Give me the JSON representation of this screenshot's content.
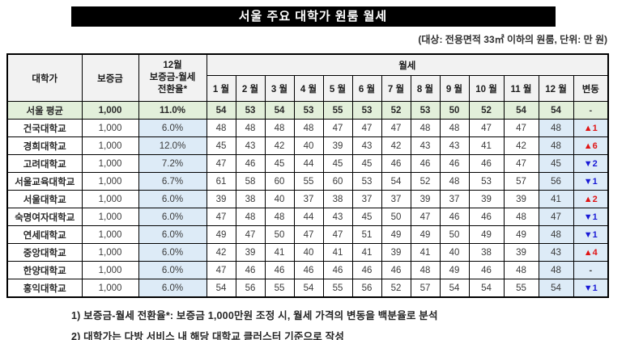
{
  "title": "서울 주요 대학가 원룸 월세",
  "subtitle": "(대상: 전용면적 33㎡ 이하의 원룸, 단위: 만 원)",
  "colors": {
    "title_bg": "#000000",
    "title_fg": "#ffffff",
    "header_bg": "#f2f2f2",
    "average_row_bg": "#e2efda",
    "highlight_col_bg": "#ddebf7",
    "positive_change": "#e01414",
    "negative_change": "#1919d6"
  },
  "table": {
    "headers": {
      "university": "대학가",
      "deposit": "보증금",
      "conversion_lines": [
        "12월",
        "보증금-월세",
        "전환율*"
      ],
      "rent_group": "월세",
      "months": [
        "1 월",
        "2 월",
        "3 월",
        "4 월",
        "5 월",
        "6 월",
        "7 월",
        "8 월",
        "9 월",
        "10 월",
        "11 월",
        "12 월"
      ],
      "change": "변동"
    },
    "rows": [
      {
        "name": "서울 평균",
        "deposit": "1,000",
        "rate": "11.0%",
        "months": [
          54,
          53,
          54,
          53,
          55,
          53,
          52,
          53,
          50,
          52,
          54,
          54
        ],
        "change": {
          "symbol": "-",
          "value": "",
          "direction": "none"
        },
        "average": true
      },
      {
        "name": "건국대학교",
        "deposit": "1,000",
        "rate": "6.0%",
        "months": [
          48,
          48,
          48,
          48,
          47,
          47,
          47,
          48,
          48,
          47,
          47,
          48
        ],
        "change": {
          "symbol": "▲",
          "value": "1",
          "direction": "up"
        }
      },
      {
        "name": "경희대학교",
        "deposit": "1,000",
        "rate": "12.0%",
        "months": [
          45,
          43,
          42,
          40,
          39,
          43,
          42,
          43,
          43,
          41,
          42,
          48
        ],
        "change": {
          "symbol": "▲",
          "value": "6",
          "direction": "up"
        }
      },
      {
        "name": "고려대학교",
        "deposit": "1,000",
        "rate": "7.2%",
        "months": [
          47,
          46,
          45,
          44,
          45,
          45,
          46,
          46,
          46,
          46,
          47,
          45
        ],
        "change": {
          "symbol": "▼",
          "value": "2",
          "direction": "down"
        }
      },
      {
        "name": "서울교육대학교",
        "deposit": "1,000",
        "rate": "6.7%",
        "months": [
          61,
          58,
          60,
          55,
          60,
          53,
          54,
          52,
          48,
          53,
          57,
          56
        ],
        "change": {
          "symbol": "▼",
          "value": "1",
          "direction": "down"
        }
      },
      {
        "name": "서울대학교",
        "deposit": "1,000",
        "rate": "6.0%",
        "months": [
          39,
          38,
          40,
          37,
          38,
          37,
          37,
          39,
          37,
          39,
          39,
          41
        ],
        "change": {
          "symbol": "▲",
          "value": "2",
          "direction": "up"
        }
      },
      {
        "name": "숙명여자대학교",
        "deposit": "1,000",
        "rate": "6.0%",
        "months": [
          47,
          48,
          48,
          44,
          43,
          45,
          50,
          47,
          46,
          46,
          48,
          47
        ],
        "change": {
          "symbol": "▼",
          "value": "1",
          "direction": "down"
        }
      },
      {
        "name": "연세대학교",
        "deposit": "1,000",
        "rate": "6.0%",
        "months": [
          49,
          47,
          50,
          47,
          47,
          51,
          49,
          49,
          50,
          49,
          49,
          48
        ],
        "change": {
          "symbol": "▼",
          "value": "1",
          "direction": "down"
        }
      },
      {
        "name": "중앙대학교",
        "deposit": "1,000",
        "rate": "6.0%",
        "months": [
          42,
          39,
          41,
          40,
          41,
          41,
          39,
          41,
          40,
          38,
          39,
          43
        ],
        "change": {
          "symbol": "▲",
          "value": "4",
          "direction": "up"
        }
      },
      {
        "name": "한양대학교",
        "deposit": "1,000",
        "rate": "6.0%",
        "months": [
          47,
          46,
          46,
          46,
          46,
          46,
          46,
          48,
          49,
          46,
          48,
          48
        ],
        "change": {
          "symbol": "-",
          "value": "",
          "direction": "none"
        }
      },
      {
        "name": "홍익대학교",
        "deposit": "1,000",
        "rate": "6.0%",
        "months": [
          54,
          56,
          55,
          54,
          55,
          56,
          52,
          57,
          54,
          54,
          55,
          54
        ],
        "change": {
          "symbol": "▼",
          "value": "1",
          "direction": "down"
        }
      }
    ]
  },
  "footnotes": [
    "1) 보증금-월세 전환율*: 보증금 1,000만원 조정 시, 월세 가격의 변동을 백분율로 분석",
    "2) 대학가는 다방 서비스 내 해당 대학교 클러스터 기준으로 작성"
  ]
}
